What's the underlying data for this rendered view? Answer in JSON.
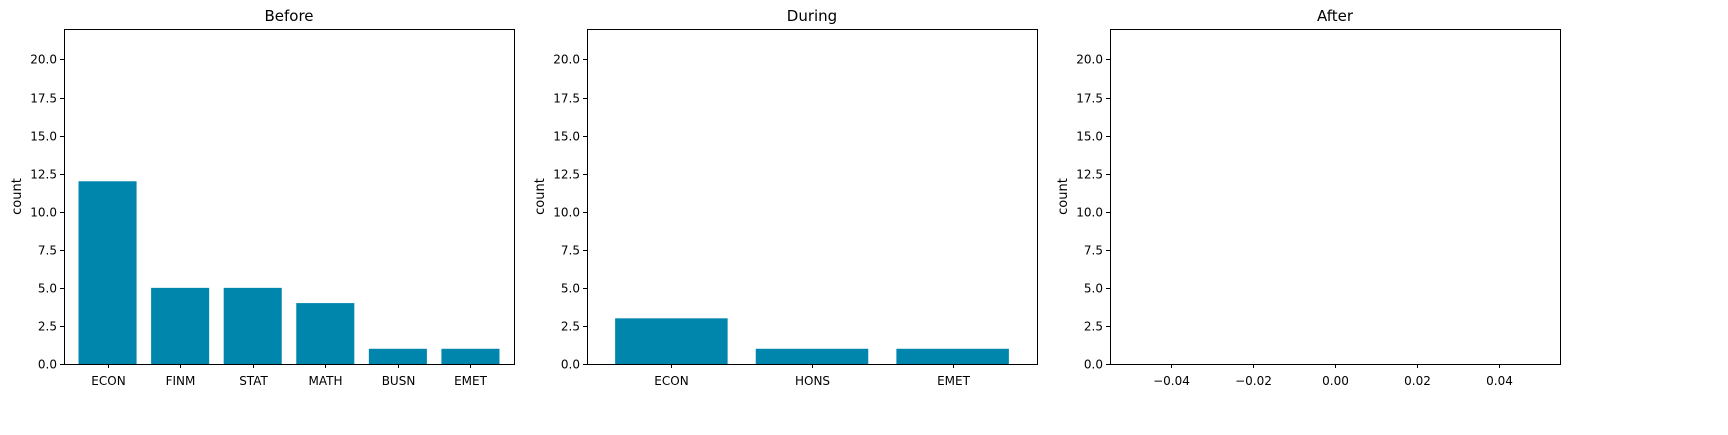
{
  "chart_data": [
    {
      "type": "bar",
      "title": "Before",
      "ylabel": "count",
      "ylim": [
        0,
        22
      ],
      "yticks": [
        0.0,
        2.5,
        5.0,
        7.5,
        10.0,
        12.5,
        15.0,
        17.5,
        20.0
      ],
      "ytick_labels": [
        "0.0",
        "2.5",
        "5.0",
        "7.5",
        "10.0",
        "12.5",
        "15.0",
        "17.5",
        "20.0"
      ],
      "categories": [
        "ECON",
        "FINM",
        "STAT",
        "MATH",
        "BUSN",
        "EMET"
      ],
      "values": [
        12,
        5,
        5,
        4,
        1,
        1
      ],
      "color": "#0086ad",
      "grid": false
    },
    {
      "type": "bar",
      "title": "During",
      "ylabel": "count",
      "ylim": [
        0,
        22
      ],
      "yticks": [
        0.0,
        2.5,
        5.0,
        7.5,
        10.0,
        12.5,
        15.0,
        17.5,
        20.0
      ],
      "ytick_labels": [
        "0.0",
        "2.5",
        "5.0",
        "7.5",
        "10.0",
        "12.5",
        "15.0",
        "17.5",
        "20.0"
      ],
      "categories": [
        "ECON",
        "HONS",
        "EMET"
      ],
      "values": [
        3,
        1,
        1
      ],
      "color": "#0086ad",
      "grid": false
    },
    {
      "type": "bar",
      "title": "After",
      "ylabel": "count",
      "ylim": [
        0,
        22
      ],
      "yticks": [
        0.0,
        2.5,
        5.0,
        7.5,
        10.0,
        12.5,
        15.0,
        17.5,
        20.0
      ],
      "ytick_labels": [
        "0.0",
        "2.5",
        "5.0",
        "7.5",
        "10.0",
        "12.5",
        "15.0",
        "17.5",
        "20.0"
      ],
      "xlim": [
        -0.055,
        0.055
      ],
      "xticks": [
        -0.04,
        -0.02,
        0.0,
        0.02,
        0.04
      ],
      "xtick_labels": [
        "−0.04",
        "−0.02",
        "0.00",
        "0.02",
        "0.04"
      ],
      "categories": [],
      "values": [],
      "color": "#0086ad",
      "grid": false
    }
  ]
}
